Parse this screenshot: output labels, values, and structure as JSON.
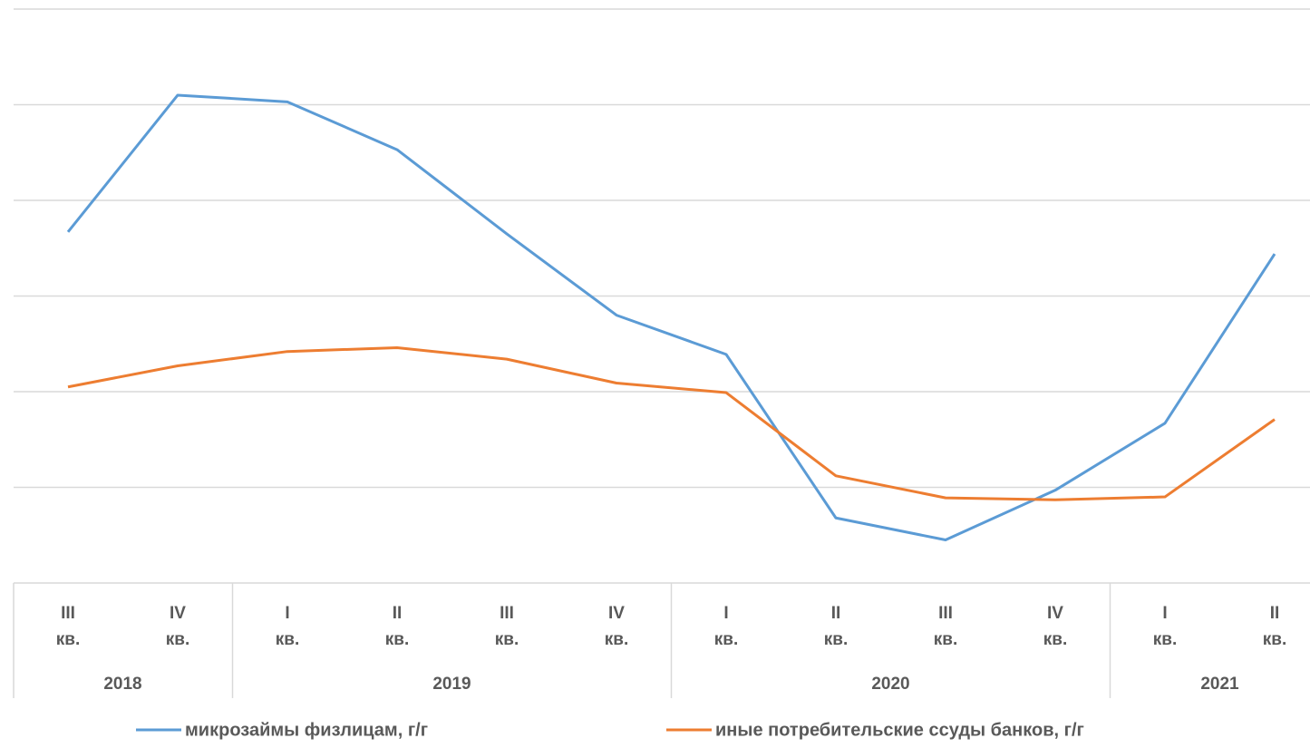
{
  "chart_data": {
    "type": "line",
    "category_groups": [
      {
        "label": "2018",
        "categories": [
          "III кв.",
          "IV кв."
        ]
      },
      {
        "label": "2019",
        "categories": [
          "I кв.",
          "II кв.",
          "III кв.",
          "IV кв."
        ]
      },
      {
        "label": "2020",
        "categories": [
          "I кв.",
          "II кв.",
          "III кв.",
          "IV кв."
        ]
      },
      {
        "label": "2021",
        "categories": [
          "I кв.",
          "II кв."
        ]
      }
    ],
    "series": [
      {
        "name": "микрозаймы физлицам, г/г",
        "color": "#5b9bd5",
        "values": [
          3.67,
          5.1,
          5.03,
          4.53,
          3.65,
          2.8,
          2.39,
          0.68,
          0.45,
          0.97,
          1.67,
          3.44
        ]
      },
      {
        "name": "иные потребительские ссуды банков, г/г",
        "color": "#ed7d31",
        "values": [
          2.05,
          2.27,
          2.42,
          2.46,
          2.34,
          2.09,
          1.99,
          1.12,
          0.89,
          0.87,
          0.9,
          1.71
        ]
      }
    ],
    "ylim": [
      0,
      6
    ],
    "yticks": [
      0,
      1,
      2,
      3,
      4,
      5,
      6
    ],
    "grid": true,
    "legend": "bottom"
  }
}
